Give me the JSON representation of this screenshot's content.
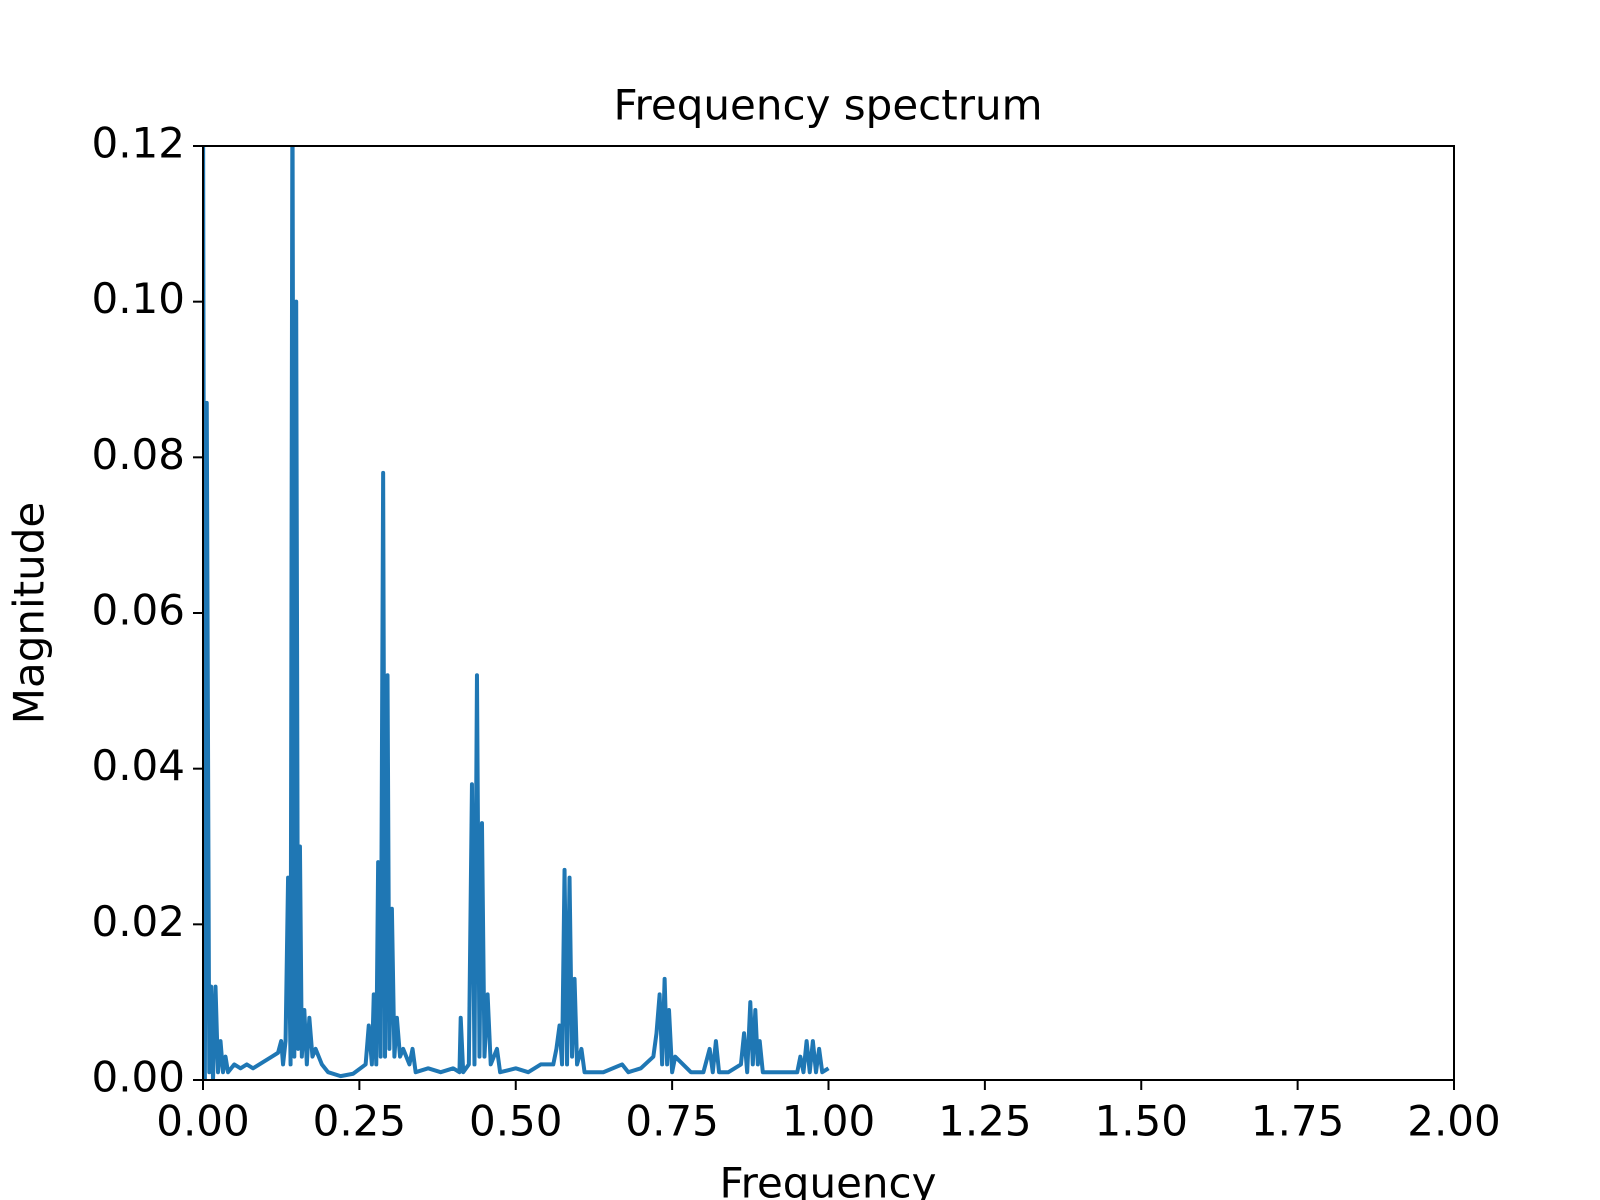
{
  "chart_data": {
    "type": "line",
    "title": "Frequency spectrum",
    "x_label": "Frequency",
    "y_label": "Magnitude",
    "color": "#1f77b4",
    "x": [
      0,
      0.003,
      0.006,
      0.01,
      0.013,
      0.016,
      0.02,
      0.024,
      0.028,
      0.032,
      0.036,
      0.04,
      0.05,
      0.06,
      0.07,
      0.08,
      0.09,
      0.1,
      0.11,
      0.12,
      0.125,
      0.128,
      0.132,
      0.136,
      0.14,
      0.143,
      0.146,
      0.149,
      0.152,
      0.155,
      0.158,
      0.162,
      0.166,
      0.17,
      0.175,
      0.18,
      0.19,
      0.2,
      0.22,
      0.24,
      0.26,
      0.265,
      0.27,
      0.273,
      0.277,
      0.28,
      0.284,
      0.288,
      0.291,
      0.295,
      0.298,
      0.302,
      0.306,
      0.31,
      0.315,
      0.32,
      0.33,
      0.335,
      0.34,
      0.36,
      0.38,
      0.4,
      0.41,
      0.412,
      0.416,
      0.425,
      0.43,
      0.434,
      0.438,
      0.442,
      0.446,
      0.45,
      0.455,
      0.46,
      0.47,
      0.475,
      0.5,
      0.52,
      0.54,
      0.56,
      0.565,
      0.57,
      0.574,
      0.578,
      0.582,
      0.586,
      0.59,
      0.594,
      0.598,
      0.605,
      0.61,
      0.64,
      0.67,
      0.68,
      0.7,
      0.72,
      0.725,
      0.73,
      0.734,
      0.738,
      0.742,
      0.745,
      0.75,
      0.755,
      0.78,
      0.8,
      0.81,
      0.815,
      0.82,
      0.825,
      0.84,
      0.86,
      0.865,
      0.87,
      0.875,
      0.879,
      0.883,
      0.887,
      0.89,
      0.895,
      0.92,
      0.95,
      0.955,
      0.96,
      0.965,
      0.97,
      0.975,
      0.98,
      0.985,
      0.99,
      1.0
    ],
    "values": [
      0.13,
      0.0,
      0.087,
      0.001,
      0.012,
      0.0,
      0.012,
      0.001,
      0.005,
      0.001,
      0.003,
      0.001,
      0.002,
      0.0015,
      0.002,
      0.0015,
      0.002,
      0.0025,
      0.003,
      0.0035,
      0.005,
      0.002,
      0.005,
      0.026,
      0.002,
      0.13,
      0.003,
      0.1,
      0.004,
      0.03,
      0.003,
      0.009,
      0.002,
      0.008,
      0.003,
      0.004,
      0.002,
      0.001,
      0.0005,
      0.0008,
      0.002,
      0.007,
      0.002,
      0.011,
      0.002,
      0.028,
      0.003,
      0.078,
      0.003,
      0.052,
      0.004,
      0.022,
      0.003,
      0.008,
      0.003,
      0.004,
      0.002,
      0.004,
      0.001,
      0.0015,
      0.001,
      0.0015,
      0.001,
      0.008,
      0.001,
      0.002,
      0.038,
      0.002,
      0.052,
      0.003,
      0.033,
      0.003,
      0.011,
      0.002,
      0.004,
      0.001,
      0.0015,
      0.001,
      0.002,
      0.002,
      0.004,
      0.007,
      0.002,
      0.027,
      0.002,
      0.026,
      0.003,
      0.013,
      0.002,
      0.004,
      0.001,
      0.001,
      0.002,
      0.001,
      0.0015,
      0.003,
      0.006,
      0.011,
      0.002,
      0.013,
      0.002,
      0.009,
      0.001,
      0.003,
      0.001,
      0.001,
      0.004,
      0.001,
      0.005,
      0.001,
      0.001,
      0.002,
      0.006,
      0.001,
      0.01,
      0.002,
      0.009,
      0.002,
      0.005,
      0.001,
      0.001,
      0.001,
      0.003,
      0.001,
      0.005,
      0.001,
      0.005,
      0.001,
      0.004,
      0.001,
      0.0015
    ],
    "xlim": [
      0,
      2
    ],
    "xticks": [
      {
        "value": 0,
        "label": "0.00"
      },
      {
        "value": 0.25,
        "label": "0.25"
      },
      {
        "value": 0.5,
        "label": "0.50"
      },
      {
        "value": 0.75,
        "label": "0.75"
      },
      {
        "value": 1,
        "label": "1.00"
      },
      {
        "value": 1.25,
        "label": "1.25"
      },
      {
        "value": 1.5,
        "label": "1.50"
      },
      {
        "value": 1.75,
        "label": "1.75"
      },
      {
        "value": 2,
        "label": "2.00"
      }
    ],
    "ylim": [
      0,
      0.12
    ],
    "yticks": [
      {
        "value": 0,
        "label": "0.00"
      },
      {
        "value": 0.02,
        "label": "0.02"
      },
      {
        "value": 0.04,
        "label": "0.04"
      },
      {
        "value": 0.06,
        "label": "0.06"
      },
      {
        "value": 0.08,
        "label": "0.08"
      },
      {
        "value": 0.1,
        "label": "0.10"
      },
      {
        "value": 0.12,
        "label": "0.12"
      }
    ]
  }
}
